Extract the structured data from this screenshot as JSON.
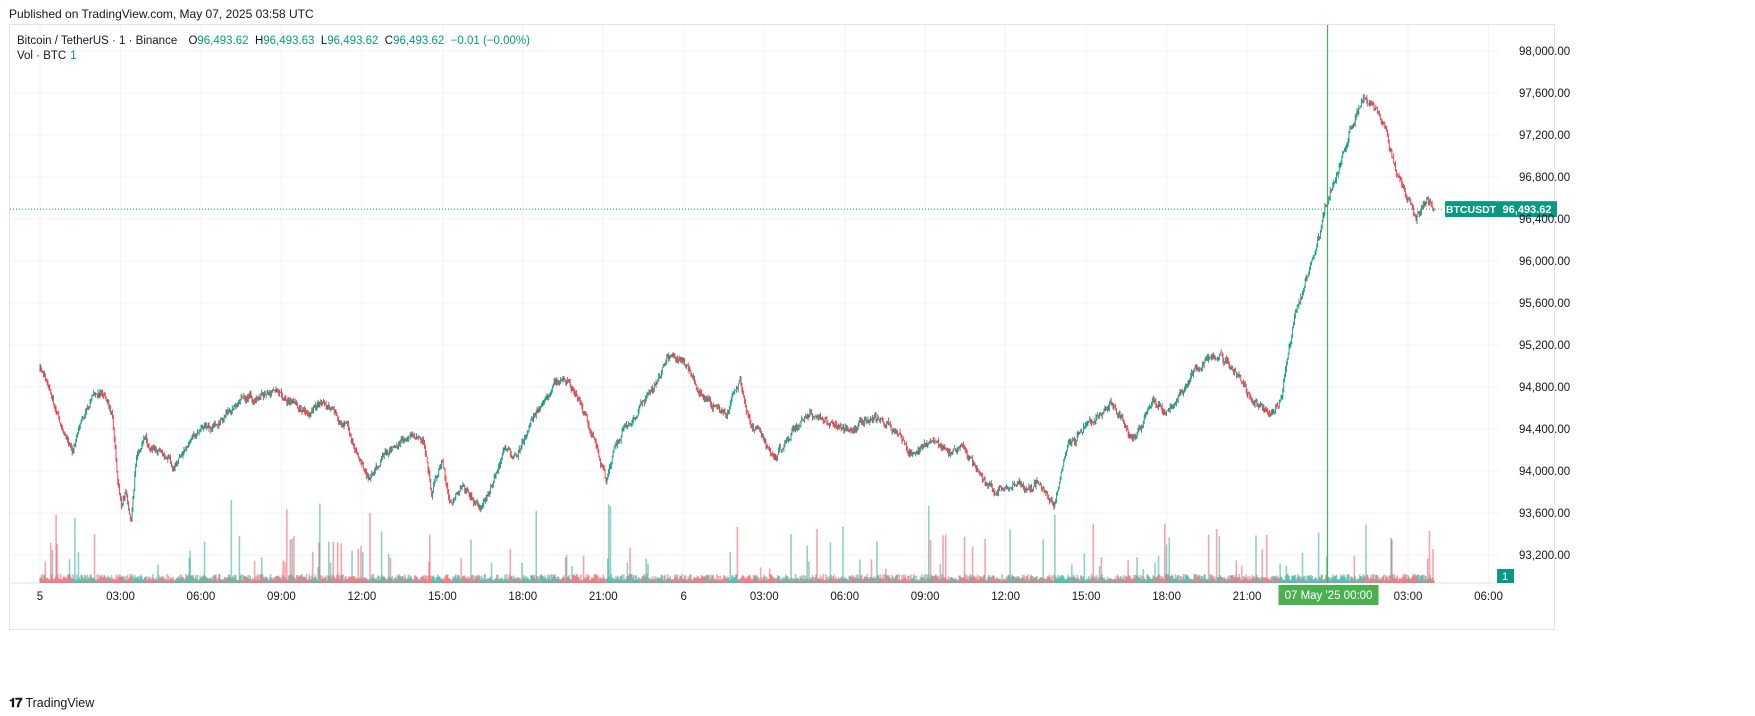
{
  "header": {
    "publish_text": "Published on TradingView.com, May 07, 2025 03:58 UTC"
  },
  "legend": {
    "symbol": "Bitcoin / TetherUS · 1 · Binance",
    "o_label": "O",
    "o_value": "96,493.62",
    "h_label": "H",
    "h_value": "96,493.63",
    "l_label": "L",
    "l_value": "96,493.62",
    "c_label": "C",
    "c_value": "96,493.62",
    "change": "−0.01 (−0.00%)",
    "vol_label": "Vol · BTC",
    "vol_value": "1"
  },
  "footer": {
    "logo_glyph": "𝟏𝟕",
    "brand": "TradingView"
  },
  "colors": {
    "up": "#089981",
    "down": "#f23645",
    "highlight": "#4caf50",
    "grid": "#f0f3fa"
  },
  "chart_data": {
    "type": "candlestick",
    "title": "Bitcoin / TetherUS · 1 · Binance",
    "ylim": [
      92950,
      98350
    ],
    "y_ticks": [
      "98,000.00",
      "97,600.00",
      "97,200.00",
      "96,800.00",
      "96,400.00",
      "96,000.00",
      "95,600.00",
      "95,200.00",
      "94,800.00",
      "94,400.00",
      "94,000.00",
      "93,600.00",
      "93,200.00"
    ],
    "y_tick_values": [
      98000,
      97600,
      97200,
      96800,
      96400,
      96000,
      95600,
      95200,
      94800,
      94400,
      94000,
      93600,
      93200
    ],
    "x_ticks": [
      "5",
      "03:00",
      "06:00",
      "09:00",
      "12:00",
      "15:00",
      "18:00",
      "21:00",
      "6",
      "03:00",
      "06:00",
      "09:00",
      "12:00",
      "15:00",
      "18:00",
      "21:00",
      "03:00",
      "06:00"
    ],
    "x_tick_hours": [
      0,
      3,
      6,
      9,
      12,
      15,
      18,
      21,
      24,
      27,
      30,
      33,
      36,
      39,
      42,
      45,
      51,
      54
    ],
    "x_range_hours": [
      -1.15,
      54.3
    ],
    "last_hour": 51.97,
    "crosshair_hour": 48.0,
    "crosshair_label": "07 May '25   00:00",
    "last_price": 96493.62,
    "last_price_label": "96,493.62",
    "symbol_badge": "BTCUSDT",
    "volume_badge": "1",
    "price_path": [
      [
        0,
        95000
      ],
      [
        0.3,
        94850
      ],
      [
        0.8,
        94400
      ],
      [
        1.2,
        94200
      ],
      [
        1.6,
        94500
      ],
      [
        2.0,
        94700
      ],
      [
        2.3,
        94750
      ],
      [
        2.7,
        94550
      ],
      [
        2.9,
        93900
      ],
      [
        3.05,
        93650
      ],
      [
        3.2,
        93800
      ],
      [
        3.4,
        93550
      ],
      [
        3.6,
        94150
      ],
      [
        3.9,
        94300
      ],
      [
        4.3,
        94200
      ],
      [
        5.0,
        94050
      ],
      [
        5.5,
        94250
      ],
      [
        6.0,
        94400
      ],
      [
        6.6,
        94450
      ],
      [
        7.0,
        94550
      ],
      [
        7.6,
        94700
      ],
      [
        8.2,
        94700
      ],
      [
        8.8,
        94750
      ],
      [
        9.4,
        94650
      ],
      [
        10.0,
        94550
      ],
      [
        10.5,
        94650
      ],
      [
        11.0,
        94550
      ],
      [
        11.5,
        94400
      ],
      [
        12.0,
        94050
      ],
      [
        12.3,
        93900
      ],
      [
        12.7,
        94100
      ],
      [
        13.2,
        94250
      ],
      [
        13.8,
        94350
      ],
      [
        14.3,
        94300
      ],
      [
        14.6,
        93800
      ],
      [
        15.0,
        94100
      ],
      [
        15.3,
        93700
      ],
      [
        15.8,
        93850
      ],
      [
        16.4,
        93650
      ],
      [
        16.9,
        93900
      ],
      [
        17.3,
        94200
      ],
      [
        17.8,
        94100
      ],
      [
        18.3,
        94500
      ],
      [
        18.8,
        94650
      ],
      [
        19.2,
        94850
      ],
      [
        19.7,
        94850
      ],
      [
        20.2,
        94600
      ],
      [
        20.6,
        94350
      ],
      [
        20.9,
        94100
      ],
      [
        21.1,
        93900
      ],
      [
        21.4,
        94200
      ],
      [
        21.8,
        94400
      ],
      [
        22.2,
        94550
      ],
      [
        22.5,
        94650
      ],
      [
        23.0,
        94850
      ],
      [
        23.5,
        95100
      ],
      [
        24.0,
        95050
      ],
      [
        24.4,
        94850
      ],
      [
        24.8,
        94700
      ],
      [
        25.2,
        94600
      ],
      [
        25.6,
        94550
      ],
      [
        25.9,
        94800
      ],
      [
        26.1,
        94850
      ],
      [
        26.5,
        94450
      ],
      [
        27.0,
        94300
      ],
      [
        27.4,
        94100
      ],
      [
        27.8,
        94300
      ],
      [
        28.3,
        94450
      ],
      [
        28.7,
        94550
      ],
      [
        29.1,
        94500
      ],
      [
        29.6,
        94450
      ],
      [
        30.1,
        94400
      ],
      [
        30.6,
        94450
      ],
      [
        31.1,
        94500
      ],
      [
        31.6,
        94450
      ],
      [
        32.0,
        94350
      ],
      [
        32.5,
        94150
      ],
      [
        33.0,
        94250
      ],
      [
        33.5,
        94250
      ],
      [
        34.0,
        94150
      ],
      [
        34.4,
        94250
      ],
      [
        34.8,
        94050
      ],
      [
        35.2,
        93900
      ],
      [
        35.6,
        93800
      ],
      [
        36.0,
        93850
      ],
      [
        36.4,
        93900
      ],
      [
        36.8,
        93800
      ],
      [
        37.2,
        93900
      ],
      [
        37.5,
        93800
      ],
      [
        37.8,
        93700
      ],
      [
        38.0,
        93900
      ],
      [
        38.3,
        94250
      ],
      [
        38.6,
        94300
      ],
      [
        39.0,
        94450
      ],
      [
        39.4,
        94500
      ],
      [
        39.9,
        94650
      ],
      [
        40.3,
        94500
      ],
      [
        40.7,
        94300
      ],
      [
        41.1,
        94450
      ],
      [
        41.5,
        94700
      ],
      [
        41.9,
        94550
      ],
      [
        42.2,
        94650
      ],
      [
        42.6,
        94750
      ],
      [
        43.0,
        94950
      ],
      [
        43.5,
        95050
      ],
      [
        44.0,
        95100
      ],
      [
        44.4,
        95000
      ],
      [
        44.8,
        94850
      ],
      [
        45.1,
        94700
      ],
      [
        45.5,
        94600
      ],
      [
        45.9,
        94550
      ],
      [
        46.3,
        94700
      ],
      [
        46.5,
        95100
      ],
      [
        46.8,
        95500
      ],
      [
        47.1,
        95700
      ],
      [
        47.4,
        96000
      ],
      [
        47.7,
        96250
      ],
      [
        47.9,
        96500
      ],
      [
        48.2,
        96750
      ],
      [
        48.5,
        96950
      ],
      [
        48.8,
        97250
      ],
      [
        49.1,
        97400
      ],
      [
        49.4,
        97550
      ],
      [
        49.8,
        97450
      ],
      [
        50.1,
        97300
      ],
      [
        50.4,
        97000
      ],
      [
        50.7,
        96750
      ],
      [
        51.0,
        96600
      ],
      [
        51.3,
        96400
      ],
      [
        51.5,
        96500
      ],
      [
        51.7,
        96580
      ],
      [
        51.97,
        96493.62
      ]
    ],
    "volume_ylim": [
      0,
      200
    ],
    "volume_scale_px": 130
  }
}
